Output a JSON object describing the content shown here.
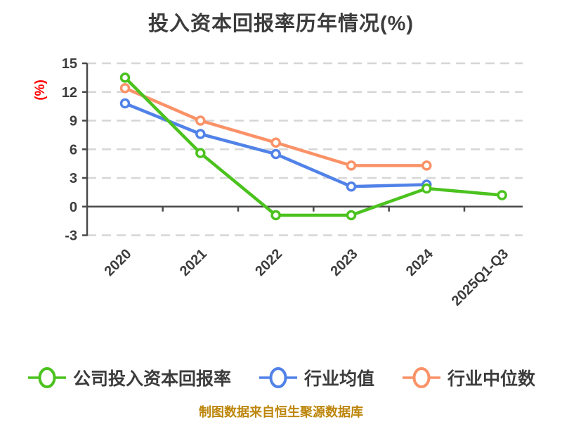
{
  "chart_data": {
    "type": "line",
    "title": "投入资本回报率历年情况(%)",
    "ylabel": "(%)",
    "ylabel_color": "#ff0000",
    "categories": [
      "2020",
      "2021",
      "2022",
      "2023",
      "2024",
      "2025Q1-Q3"
    ],
    "series": [
      {
        "name": "公司投入资本回报率",
        "color": "#4bc21e",
        "values": [
          13.5,
          5.6,
          -0.9,
          -0.9,
          1.9,
          1.2
        ]
      },
      {
        "name": "行业均值",
        "color": "#5182e8",
        "values": [
          10.8,
          7.6,
          5.5,
          2.1,
          2.3,
          null
        ]
      },
      {
        "name": "行业中位数",
        "color": "#fa9268",
        "values": [
          12.4,
          9.0,
          6.7,
          4.3,
          4.3,
          null
        ]
      }
    ],
    "ylim": [
      -3,
      15
    ],
    "yticks": [
      15,
      12,
      9,
      6,
      3,
      0,
      -3
    ],
    "grid": "horizontal-dashed",
    "x_axis_position": "zero",
    "legend_position": "bottom",
    "marker_style": "white-filled-circle"
  },
  "footer": "制图数据来自恒生聚源数据库"
}
